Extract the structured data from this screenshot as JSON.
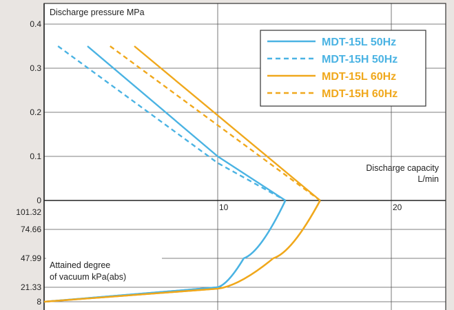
{
  "chart_data": {
    "type": "line",
    "title": "",
    "y_upper_label": "Discharge pressure MPa",
    "x_label_line1": "Discharge capacity",
    "x_label_line2": "L/min",
    "y_lower_label_line1": "Attained degree",
    "y_lower_label_line2": "of vacuum kPa(abs)",
    "x_range": [
      0,
      23
    ],
    "x_ticks": [
      "10",
      "20"
    ],
    "x_tick_values": [
      10,
      20
    ],
    "pressure_range": [
      0,
      0.42
    ],
    "pressure_ticks": [
      "0.4",
      "0.3",
      "0.2",
      "0.1",
      "0"
    ],
    "pressure_tick_values": [
      0.4,
      0.3,
      0.2,
      0.1,
      0
    ],
    "vacuum_range": [
      101.32,
      8
    ],
    "vacuum_ticks": [
      "101.32",
      "74.66",
      "47.99",
      "21.33",
      "8"
    ],
    "vacuum_tick_values": [
      101.32,
      74.66,
      47.99,
      21.33,
      8
    ],
    "grid": true,
    "legend_position": "top-right",
    "series": [
      {
        "name": "MDT-15L 50Hz",
        "color": "#4ab3e3",
        "dash": "solid",
        "pressure_points": [
          [
            2.5,
            0.35
          ],
          [
            10,
            0.1
          ],
          [
            13.9,
            0
          ]
        ],
        "vacuum_points": [
          [
            13.9,
            101.32
          ],
          [
            11.5,
            47.99
          ],
          [
            10,
            21.33
          ],
          [
            0,
            8
          ]
        ]
      },
      {
        "name": "MDT-15H 50Hz",
        "color": "#4ab3e3",
        "dash": "dashed",
        "pressure_points": [
          [
            0.8,
            0.35
          ],
          [
            10,
            0.085
          ],
          [
            13.9,
            0
          ]
        ],
        "vacuum_points": [
          [
            13.9,
            101.32
          ],
          [
            11.5,
            47.99
          ],
          [
            10,
            21.33
          ],
          [
            0,
            8
          ]
        ]
      },
      {
        "name": "MDT-15L 60Hz",
        "color": "#f0a81c",
        "dash": "solid",
        "pressure_points": [
          [
            5.2,
            0.35
          ],
          [
            15.9,
            0
          ]
        ],
        "vacuum_points": [
          [
            15.9,
            101.32
          ],
          [
            13.2,
            47.99
          ],
          [
            10,
            20
          ],
          [
            0,
            8
          ]
        ]
      },
      {
        "name": "MDT-15H 60Hz",
        "color": "#f0a81c",
        "dash": "dashed",
        "pressure_points": [
          [
            3.8,
            0.35
          ],
          [
            15.9,
            0
          ]
        ],
        "vacuum_points": [
          [
            15.9,
            101.32
          ],
          [
            13.2,
            47.99
          ],
          [
            10,
            20
          ],
          [
            0,
            8
          ]
        ]
      }
    ]
  }
}
